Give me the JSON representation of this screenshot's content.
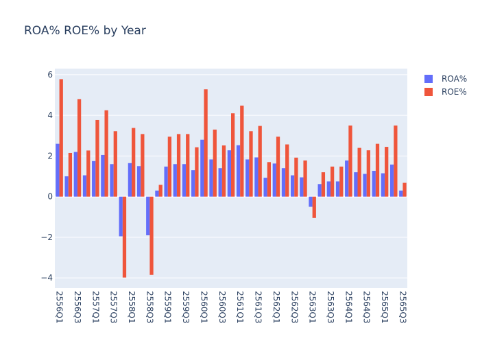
{
  "chart_data": {
    "type": "bar",
    "title": "ROA% ROE% by Year",
    "xlabel": "",
    "ylabel": "",
    "ylim": [
      -4.5,
      6.3
    ],
    "grid": true,
    "legend_position": "top-right",
    "yticks": [
      -4,
      -2,
      0,
      2,
      4,
      6
    ],
    "ytick_labels": [
      "−4",
      "−2",
      "0",
      "2",
      "4",
      "6"
    ],
    "categories": [
      "2556Q1",
      "2556Q2",
      "2556Q3",
      "2556Q4",
      "2557Q1",
      "2557Q2",
      "2557Q3",
      "2557Q4",
      "2558Q1",
      "2558Q2",
      "2558Q3",
      "2558Q4",
      "2559Q1",
      "2559Q2",
      "2559Q3",
      "2559Q4",
      "2560Q1",
      "2560Q2",
      "2560Q3",
      "2560Q4",
      "2561Q1",
      "2561Q2",
      "2561Q3",
      "2561Q4",
      "2562Q1",
      "2562Q2",
      "2562Q3",
      "2562Q4",
      "2563Q1",
      "2563Q2",
      "2563Q3",
      "2563Q4",
      "2564Q1",
      "2564Q2",
      "2564Q3",
      "2564Q4",
      "2565Q1",
      "2565Q2",
      "2565Q3"
    ],
    "xtick_labels": [
      "2556Q1",
      "2556Q3",
      "2557Q1",
      "2557Q3",
      "2558Q1",
      "2558Q3",
      "2559Q1",
      "2559Q3",
      "2560Q1",
      "2560Q3",
      "2561Q1",
      "2561Q3",
      "2562Q1",
      "2562Q3",
      "2563Q1",
      "2563Q3",
      "2564Q1",
      "2564Q3",
      "2565Q1",
      "2565Q3"
    ],
    "series": [
      {
        "name": "ROA%",
        "color": "#636efa",
        "values": [
          2.6,
          1.0,
          2.2,
          1.05,
          1.75,
          2.05,
          1.6,
          -1.95,
          1.65,
          1.5,
          -1.9,
          0.3,
          1.48,
          1.6,
          1.6,
          1.3,
          2.8,
          1.83,
          1.4,
          2.28,
          2.53,
          1.83,
          1.93,
          0.93,
          1.63,
          1.4,
          1.05,
          0.95,
          -0.5,
          0.62,
          0.75,
          0.75,
          1.78,
          1.2,
          1.12,
          1.27,
          1.15,
          1.58,
          0.3
        ]
      },
      {
        "name": "ROE%",
        "color": "#ef553b",
        "values": [
          5.78,
          2.15,
          4.8,
          2.27,
          3.77,
          4.25,
          3.22,
          -3.98,
          3.38,
          3.08,
          -3.85,
          0.58,
          2.95,
          3.08,
          3.08,
          2.43,
          5.28,
          3.3,
          2.52,
          4.1,
          4.48,
          3.22,
          3.48,
          1.7,
          2.95,
          2.57,
          1.92,
          1.78,
          -1.05,
          1.2,
          1.48,
          1.48,
          3.5,
          2.4,
          2.28,
          2.6,
          2.45,
          3.5,
          0.68
        ]
      }
    ]
  }
}
